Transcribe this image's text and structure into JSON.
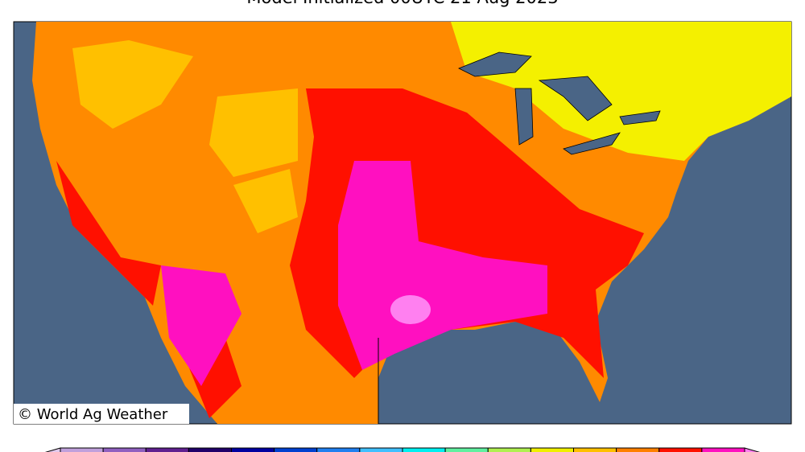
{
  "title": "Model Initialized 00UTC 21 Aug 2023",
  "watermark": "© World Ag Weather",
  "colorbar": {
    "colors": [
      "#e0c8ec",
      "#c0a0dc",
      "#9060c0",
      "#602090",
      "#20006a",
      "#0000a0",
      "#0040d0",
      "#2080f0",
      "#40c0ff",
      "#00f0f0",
      "#60f0a0",
      "#b0f050",
      "#f0f000",
      "#ffc000",
      "#ff8000",
      "#ff1000",
      "#ff10c0",
      "#ff80f0"
    ]
  }
}
